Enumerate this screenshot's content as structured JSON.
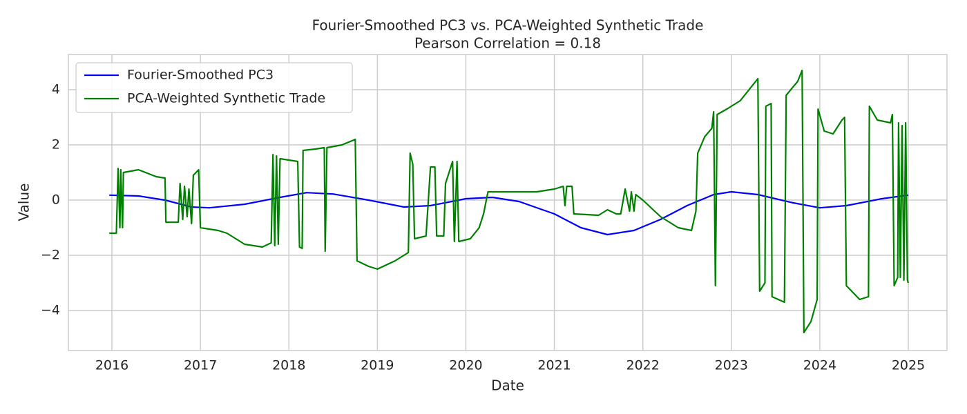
{
  "chart_data": {
    "type": "line",
    "title": "Fourier-Smoothed PC3 vs. PCA-Weighted Synthetic Trade",
    "subtitle": "Pearson Correlation = 0.18",
    "x_label": "Date",
    "y_label": "Value",
    "xlim": [
      2015.508,
      2025.437
    ],
    "xticks": [
      2016,
      2017,
      2018,
      2019,
      2020,
      2021,
      2022,
      2023,
      2024,
      2025
    ],
    "ylim": [
      -5.45,
      5.275
    ],
    "yticks": [
      {
        "value": -4,
        "label": "−4"
      },
      {
        "value": -2,
        "label": "−2"
      },
      0,
      2,
      4
    ],
    "grid": true,
    "legend": "upper-left",
    "series": [
      {
        "name": "Fourier-Smoothed PC3",
        "color": "#0000ff",
        "x": [
          2015.97,
          2016.3,
          2016.6,
          2016.9,
          2017.1,
          2017.5,
          2017.9,
          2018.2,
          2018.5,
          2018.9,
          2019.3,
          2019.6,
          2020.0,
          2020.3,
          2020.6,
          2021.0,
          2021.3,
          2021.6,
          2021.9,
          2022.2,
          2022.5,
          2022.8,
          2023.0,
          2023.3,
          2023.7,
          2024.0,
          2024.3,
          2024.7,
          2025.0
        ],
        "values": [
          0.18,
          0.15,
          0.0,
          -0.25,
          -0.28,
          -0.15,
          0.1,
          0.27,
          0.22,
          0.0,
          -0.25,
          -0.2,
          0.05,
          0.1,
          -0.05,
          -0.5,
          -1.0,
          -1.25,
          -1.1,
          -0.7,
          -0.2,
          0.2,
          0.3,
          0.2,
          -0.1,
          -0.28,
          -0.2,
          0.05,
          0.18
        ]
      },
      {
        "name": "PCA-Weighted Synthetic Trade",
        "color": "#008000",
        "x": [
          2015.97,
          2016.05,
          2016.07,
          2016.09,
          2016.1,
          2016.12,
          2016.13,
          2016.3,
          2016.5,
          2016.6,
          2016.61,
          2016.75,
          2016.77,
          2016.8,
          2016.82,
          2016.85,
          2016.87,
          2016.9,
          2016.92,
          2016.98,
          2017.0,
          2017.2,
          2017.3,
          2017.5,
          2017.7,
          2017.8,
          2017.82,
          2017.84,
          2017.86,
          2017.88,
          2017.9,
          2018.1,
          2018.12,
          2018.15,
          2018.16,
          2018.3,
          2018.4,
          2018.41,
          2018.43,
          2018.6,
          2018.75,
          2018.77,
          2018.9,
          2019.0,
          2019.2,
          2019.35,
          2019.37,
          2019.4,
          2019.42,
          2019.55,
          2019.6,
          2019.65,
          2019.67,
          2019.75,
          2019.77,
          2019.85,
          2019.87,
          2019.9,
          2019.92,
          2020.05,
          2020.15,
          2020.2,
          2020.25,
          2020.5,
          2020.8,
          2021.0,
          2021.1,
          2021.12,
          2021.14,
          2021.2,
          2021.22,
          2021.5,
          2021.6,
          2021.7,
          2021.75,
          2021.8,
          2021.85,
          2021.87,
          2021.9,
          2021.92,
          2022.0,
          2022.2,
          2022.4,
          2022.55,
          2022.6,
          2022.62,
          2022.7,
          2022.78,
          2022.8,
          2022.82,
          2022.84,
          2022.95,
          2023.1,
          2023.2,
          2023.3,
          2023.32,
          2023.38,
          2023.39,
          2023.45,
          2023.46,
          2023.6,
          2023.62,
          2023.75,
          2023.8,
          2023.82,
          2023.9,
          2023.97,
          2023.98,
          2024.05,
          2024.15,
          2024.25,
          2024.28,
          2024.3,
          2024.45,
          2024.55,
          2024.56,
          2024.65,
          2024.8,
          2024.82,
          2024.84,
          2024.88,
          2024.89,
          2024.91,
          2024.93,
          2024.95,
          2024.97,
          2024.99,
          2025.0
        ],
        "values": [
          -1.2,
          -1.2,
          1.15,
          -1.0,
          1.1,
          -1.0,
          1.0,
          1.1,
          0.85,
          0.8,
          -0.8,
          -0.8,
          0.6,
          -0.7,
          0.5,
          -0.6,
          0.4,
          -0.85,
          0.9,
          1.1,
          -1.0,
          -1.1,
          -1.2,
          -1.6,
          -1.7,
          -1.55,
          1.65,
          -1.65,
          1.6,
          -1.6,
          1.5,
          1.4,
          -1.7,
          -1.75,
          1.8,
          1.85,
          1.9,
          -1.85,
          1.9,
          2.0,
          2.2,
          -2.2,
          -2.4,
          -2.5,
          -2.2,
          -1.9,
          1.7,
          1.3,
          -1.4,
          -1.3,
          1.2,
          1.2,
          -1.3,
          -1.3,
          0.6,
          1.4,
          -1.5,
          1.4,
          -1.5,
          -1.4,
          -1.0,
          -0.5,
          0.3,
          0.3,
          0.3,
          0.4,
          0.5,
          -0.2,
          0.5,
          0.5,
          -0.5,
          -0.55,
          -0.35,
          -0.5,
          -0.5,
          0.4,
          -0.4,
          0.3,
          -0.4,
          0.2,
          0.0,
          -0.6,
          -1.0,
          -1.1,
          -0.4,
          1.7,
          2.3,
          2.6,
          3.2,
          -3.1,
          3.1,
          3.3,
          3.6,
          4.0,
          4.4,
          -3.3,
          -3.0,
          3.4,
          3.5,
          -3.5,
          -3.7,
          3.8,
          4.3,
          4.7,
          -4.8,
          -4.4,
          -3.6,
          3.3,
          2.5,
          2.4,
          2.9,
          3.0,
          -3.1,
          -3.6,
          -3.5,
          3.4,
          2.9,
          2.8,
          3.1,
          -3.1,
          -2.8,
          2.8,
          -2.8,
          2.7,
          -2.9,
          2.8,
          -2.9,
          -3.0
        ]
      }
    ]
  }
}
